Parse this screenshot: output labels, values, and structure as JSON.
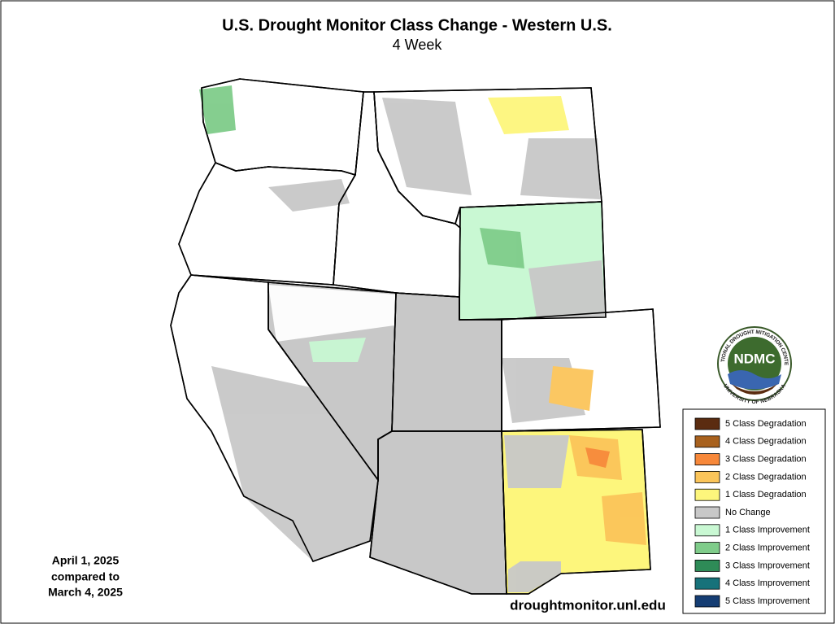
{
  "title": "U.S. Drought Monitor Class Change - Western U.S.",
  "subtitle": "4 Week",
  "legend": [
    {
      "label": "5 Class Degradation",
      "color": "#5b2c10"
    },
    {
      "label": "4 Class Degradation",
      "color": "#a8611e"
    },
    {
      "label": "3 Class Degradation",
      "color": "#f7883a"
    },
    {
      "label": "2 Class Degradation",
      "color": "#fbc55a"
    },
    {
      "label": "1 Class Degradation",
      "color": "#fdf67c"
    },
    {
      "label": "No Change",
      "color": "#c8c8c8"
    },
    {
      "label": "1 Class Improvement",
      "color": "#c9f8d3"
    },
    {
      "label": "2 Class Improvement",
      "color": "#7fcc8a"
    },
    {
      "label": "3 Class Improvement",
      "color": "#2e8b57"
    },
    {
      "label": "4 Class Improvement",
      "color": "#17727a"
    },
    {
      "label": "5 Class Improvement",
      "color": "#153d73"
    }
  ],
  "date_note": [
    "April 1, 2025",
    "compared to",
    "March 4, 2025"
  ],
  "source": "droughtmonitor.unl.edu",
  "logo": {
    "text": "NDMC",
    "ring_top": "NATIONAL DROUGHT MITIGATION CENTER",
    "ring_bottom": "UNIVERSITY OF NEBRASKA"
  }
}
